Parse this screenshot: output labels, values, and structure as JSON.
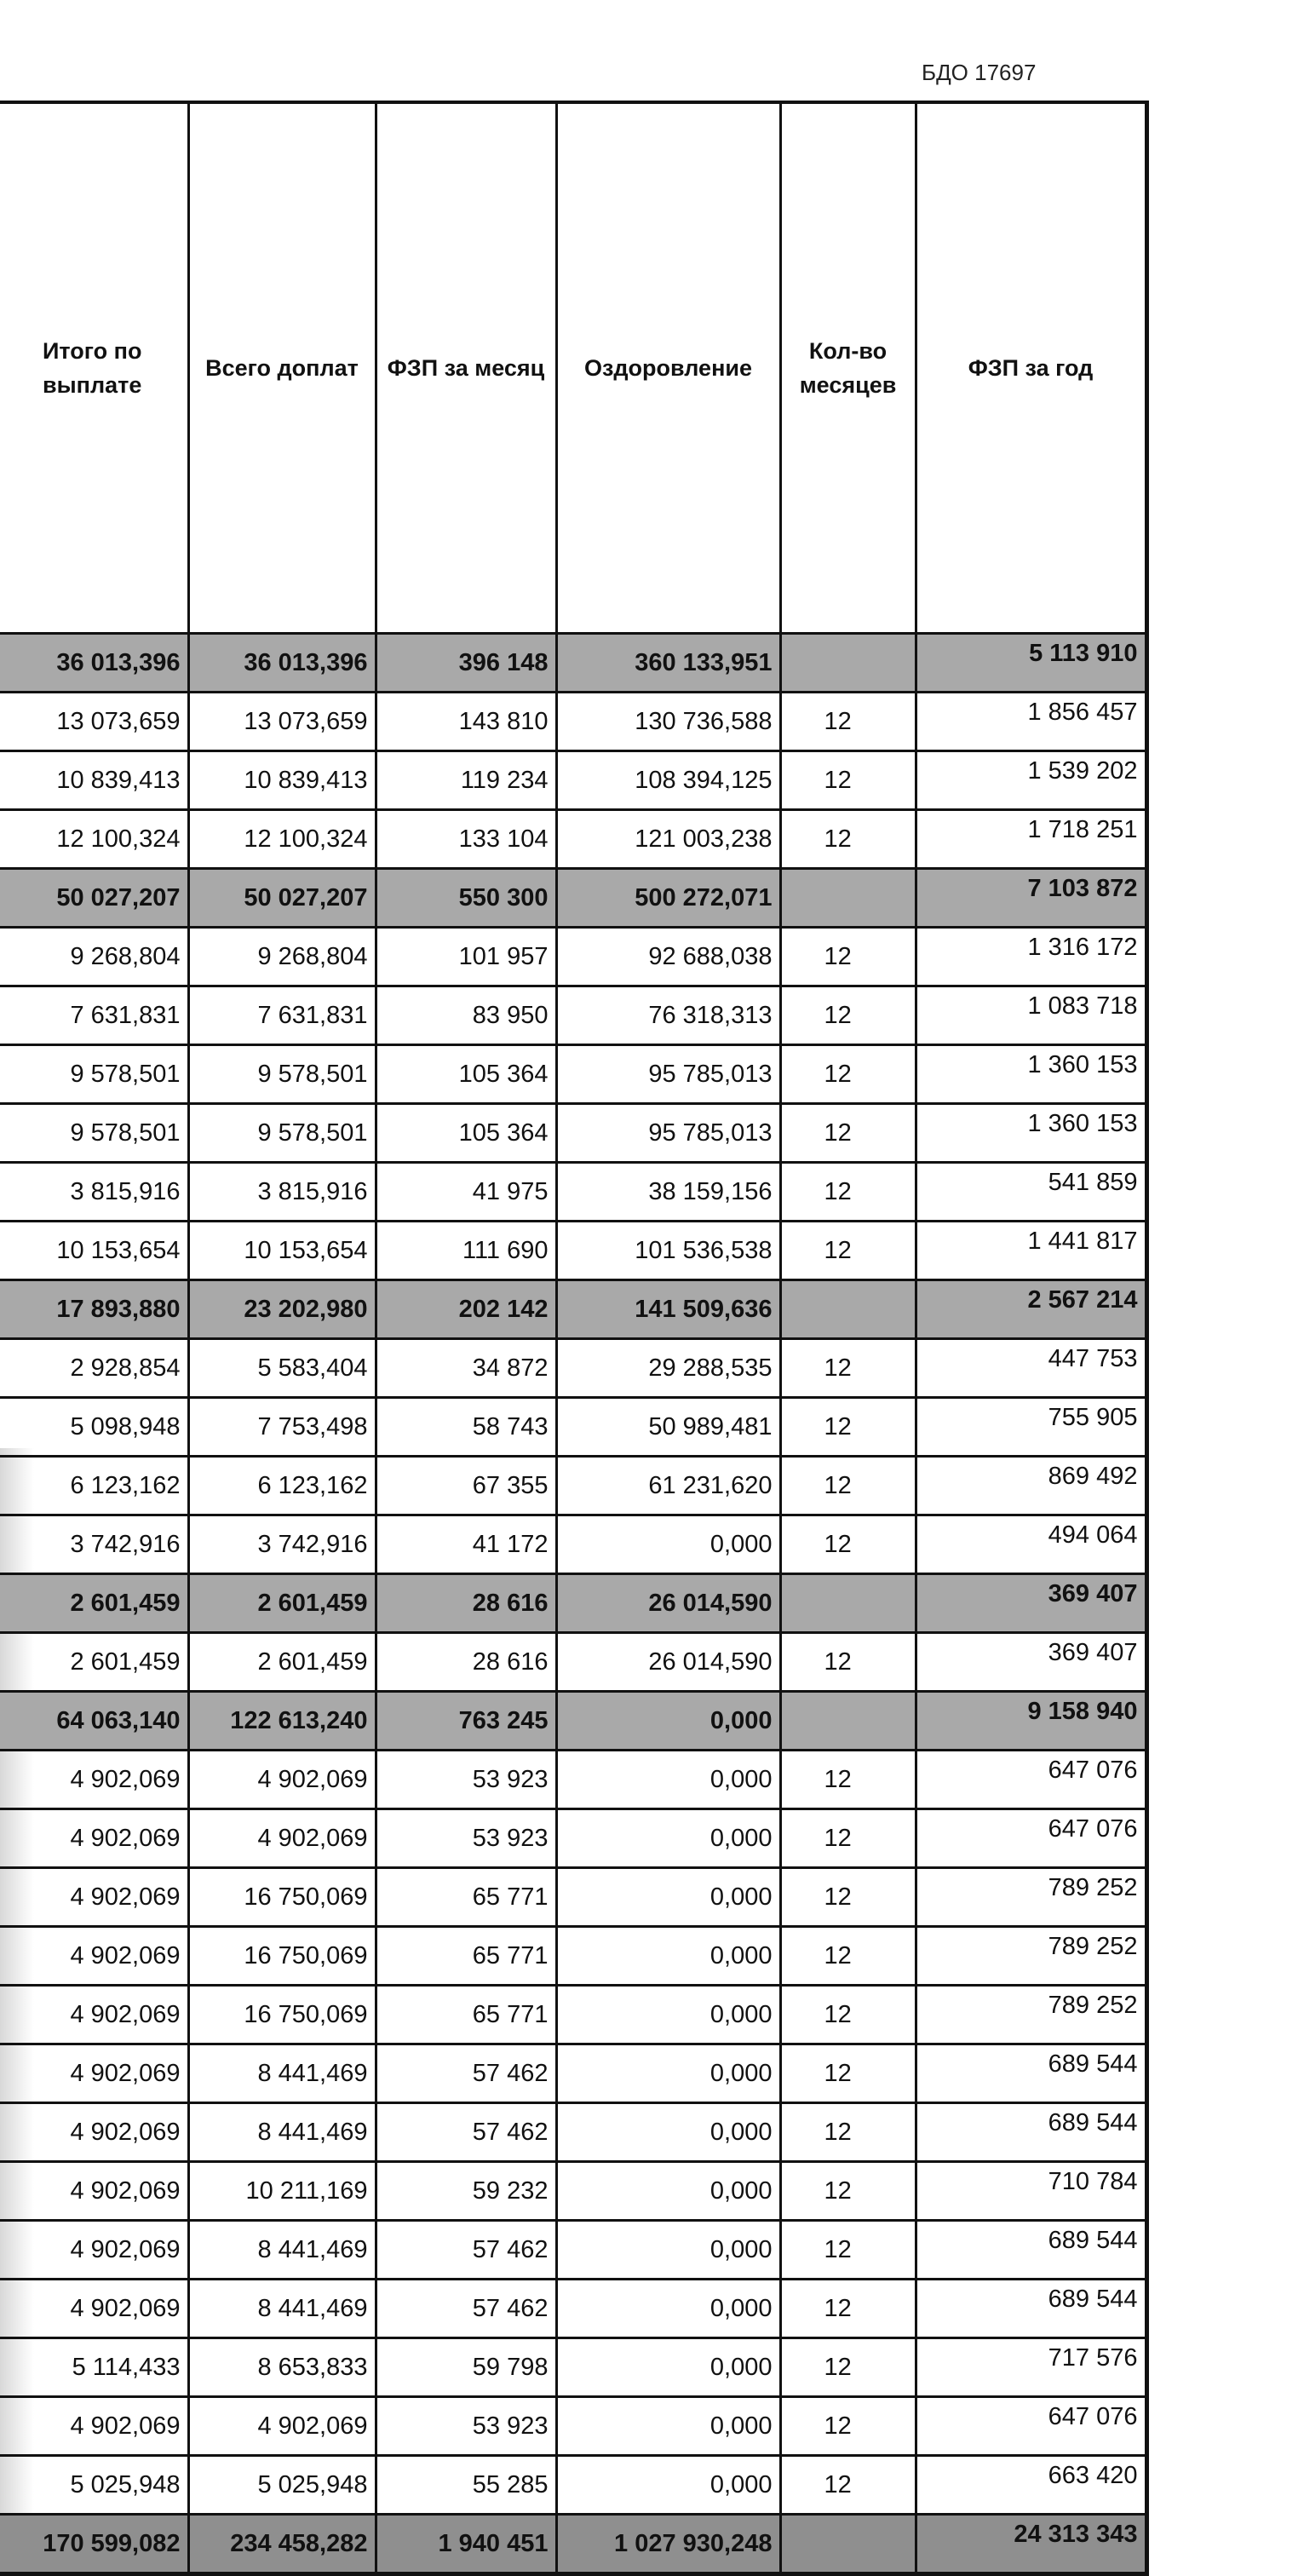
{
  "doc_id": "БДО 17697",
  "headers": [
    "Итого по выплате",
    "Всего доплат",
    "ФЗП за месяц",
    "Оздоровление",
    "Кол-во месяцев",
    "ФЗП за год"
  ],
  "rows": [
    {
      "type": "group",
      "cells": [
        "36 013,396",
        "36 013,396",
        "396 148",
        "360 133,951",
        "",
        "5 113 910"
      ]
    },
    {
      "type": "row",
      "cells": [
        "13 073,659",
        "13 073,659",
        "143 810",
        "130 736,588",
        "12",
        "1 856 457"
      ]
    },
    {
      "type": "row",
      "cells": [
        "10 839,413",
        "10 839,413",
        "119 234",
        "108 394,125",
        "12",
        "1 539 202"
      ]
    },
    {
      "type": "row",
      "cells": [
        "12 100,324",
        "12 100,324",
        "133 104",
        "121 003,238",
        "12",
        "1 718 251"
      ]
    },
    {
      "type": "group",
      "cells": [
        "50 027,207",
        "50 027,207",
        "550 300",
        "500 272,071",
        "",
        "7 103 872"
      ]
    },
    {
      "type": "row",
      "cells": [
        "9 268,804",
        "9 268,804",
        "101 957",
        "92 688,038",
        "12",
        "1 316 172"
      ]
    },
    {
      "type": "row",
      "cells": [
        "7 631,831",
        "7 631,831",
        "83 950",
        "76 318,313",
        "12",
        "1 083 718"
      ]
    },
    {
      "type": "row",
      "cells": [
        "9 578,501",
        "9 578,501",
        "105 364",
        "95 785,013",
        "12",
        "1 360 153"
      ]
    },
    {
      "type": "row",
      "cells": [
        "9 578,501",
        "9 578,501",
        "105 364",
        "95 785,013",
        "12",
        "1 360 153"
      ]
    },
    {
      "type": "row",
      "cells": [
        "3 815,916",
        "3 815,916",
        "41 975",
        "38 159,156",
        "12",
        "541 859"
      ]
    },
    {
      "type": "row",
      "cells": [
        "10 153,654",
        "10 153,654",
        "111 690",
        "101 536,538",
        "12",
        "1 441 817"
      ]
    },
    {
      "type": "group",
      "cells": [
        "17 893,880",
        "23 202,980",
        "202 142",
        "141 509,636",
        "",
        "2 567 214"
      ]
    },
    {
      "type": "row",
      "cells": [
        "2 928,854",
        "5 583,404",
        "34 872",
        "29 288,535",
        "12",
        "447 753"
      ]
    },
    {
      "type": "row",
      "cells": [
        "5 098,948",
        "7 753,498",
        "58 743",
        "50 989,481",
        "12",
        "755 905"
      ]
    },
    {
      "type": "row",
      "cells": [
        "6 123,162",
        "6 123,162",
        "67 355",
        "61 231,620",
        "12",
        "869 492"
      ]
    },
    {
      "type": "row",
      "cells": [
        "3 742,916",
        "3 742,916",
        "41 172",
        "0,000",
        "12",
        "494 064"
      ]
    },
    {
      "type": "group",
      "cells": [
        "2 601,459",
        "2 601,459",
        "28 616",
        "26 014,590",
        "",
        "369 407"
      ]
    },
    {
      "type": "row",
      "cells": [
        "2 601,459",
        "2 601,459",
        "28 616",
        "26 014,590",
        "12",
        "369 407"
      ]
    },
    {
      "type": "group",
      "cells": [
        "64 063,140",
        "122 613,240",
        "763 245",
        "0,000",
        "",
        "9 158 940"
      ]
    },
    {
      "type": "row",
      "cells": [
        "4 902,069",
        "4 902,069",
        "53 923",
        "0,000",
        "12",
        "647 076"
      ]
    },
    {
      "type": "row",
      "cells": [
        "4 902,069",
        "4 902,069",
        "53 923",
        "0,000",
        "12",
        "647 076"
      ]
    },
    {
      "type": "row",
      "cells": [
        "4 902,069",
        "16 750,069",
        "65 771",
        "0,000",
        "12",
        "789 252"
      ]
    },
    {
      "type": "row",
      "cells": [
        "4 902,069",
        "16 750,069",
        "65 771",
        "0,000",
        "12",
        "789 252"
      ]
    },
    {
      "type": "row",
      "cells": [
        "4 902,069",
        "16 750,069",
        "65 771",
        "0,000",
        "12",
        "789 252"
      ]
    },
    {
      "type": "row",
      "cells": [
        "4 902,069",
        "8 441,469",
        "57 462",
        "0,000",
        "12",
        "689 544"
      ]
    },
    {
      "type": "row",
      "cells": [
        "4 902,069",
        "8 441,469",
        "57 462",
        "0,000",
        "12",
        "689 544"
      ]
    },
    {
      "type": "row",
      "cells": [
        "4 902,069",
        "10 211,169",
        "59 232",
        "0,000",
        "12",
        "710 784"
      ]
    },
    {
      "type": "row",
      "cells": [
        "4 902,069",
        "8 441,469",
        "57 462",
        "0,000",
        "12",
        "689 544"
      ]
    },
    {
      "type": "row",
      "cells": [
        "4 902,069",
        "8 441,469",
        "57 462",
        "0,000",
        "12",
        "689 544"
      ]
    },
    {
      "type": "row",
      "cells": [
        "5 114,433",
        "8 653,833",
        "59 798",
        "0,000",
        "12",
        "717 576"
      ]
    },
    {
      "type": "row",
      "cells": [
        "4 902,069",
        "4 902,069",
        "53 923",
        "0,000",
        "12",
        "647 076"
      ]
    },
    {
      "type": "row",
      "cells": [
        "5 025,948",
        "5 025,948",
        "55 285",
        "0,000",
        "12",
        "663 420"
      ]
    },
    {
      "type": "total",
      "cells": [
        "170 599,082",
        "234 458,282",
        "1 940 451",
        "1 027 930,248",
        "",
        "24 313 343"
      ]
    }
  ]
}
